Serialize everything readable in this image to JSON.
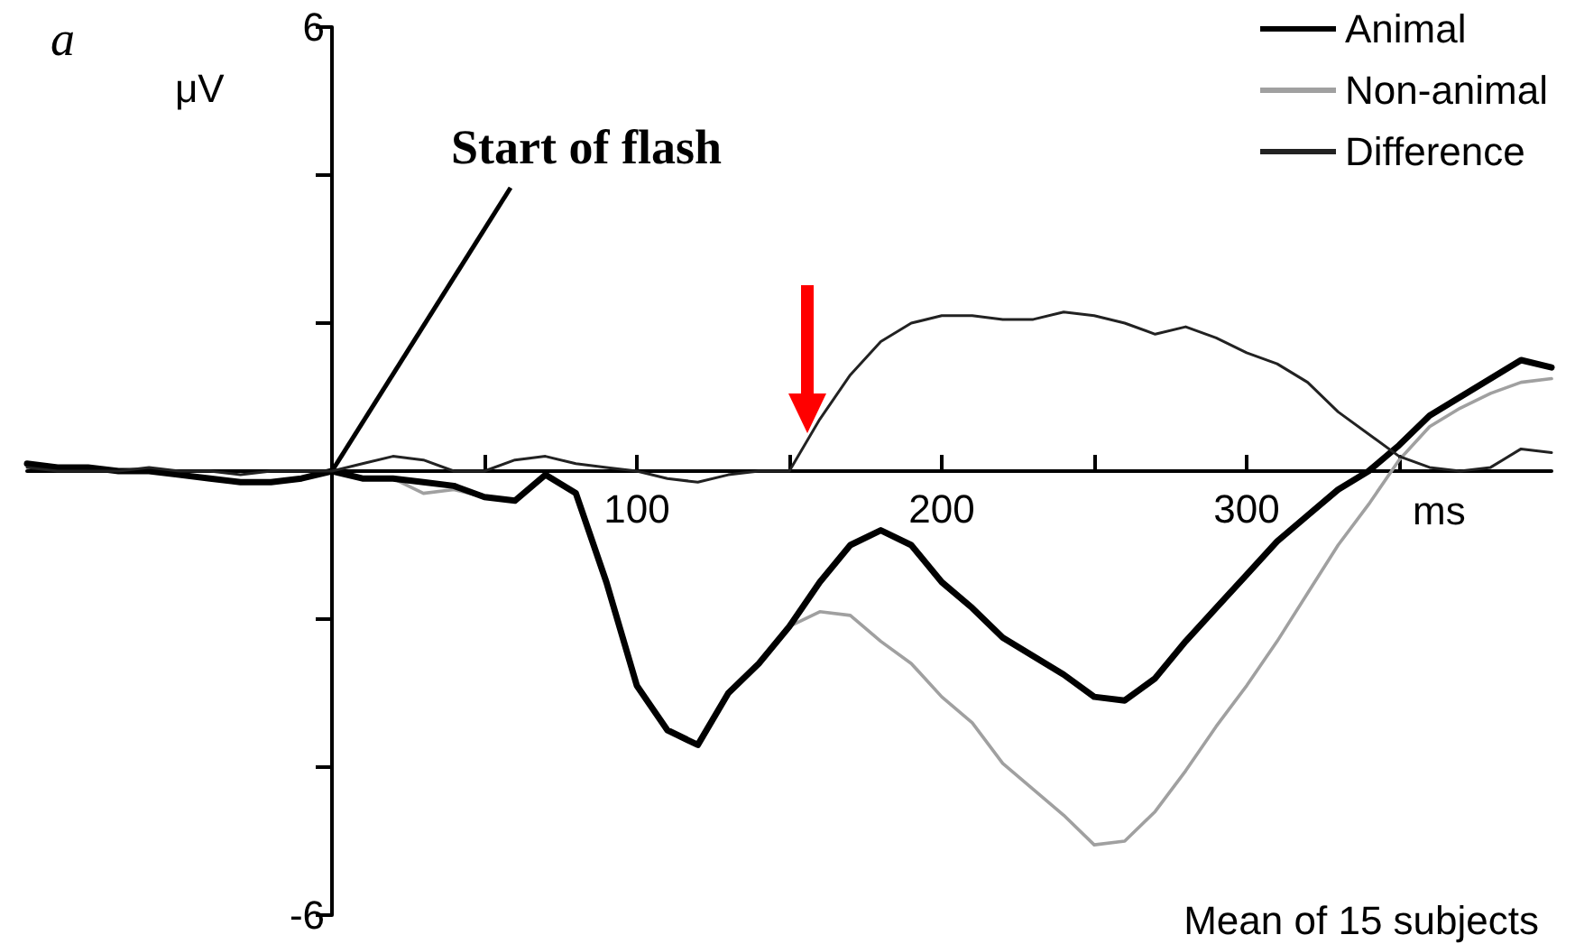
{
  "chart_data": {
    "type": "line",
    "xlabel": "ms",
    "ylabel": "μV",
    "annotations": [
      "a",
      {
        "text": "Start of flash",
        "x": 0,
        "y": 0
      },
      "Mean of 15 subjects"
    ],
    "x": [
      -100,
      -90,
      -80,
      -70,
      -60,
      -50,
      -40,
      -30,
      -20,
      -10,
      0,
      10,
      20,
      30,
      40,
      50,
      60,
      70,
      80,
      90,
      100,
      110,
      120,
      130,
      140,
      150,
      160,
      170,
      180,
      190,
      200,
      210,
      220,
      230,
      240,
      250,
      260,
      270,
      280,
      290,
      300,
      310,
      320,
      330,
      340,
      350,
      360,
      370,
      380,
      390,
      400
    ],
    "series": [
      {
        "name": "Non-animal",
        "color": "#a0a0a0",
        "values": [
          0.1,
          0.05,
          0.05,
          0,
          0,
          -0.05,
          -0.1,
          -0.15,
          -0.15,
          -0.1,
          0,
          -0.1,
          -0.1,
          -0.3,
          -0.25,
          -0.35,
          -0.4,
          -0.05,
          -0.3,
          -1.5,
          -2.9,
          -3.5,
          -3.7,
          -3.0,
          -2.6,
          -2.1,
          -1.9,
          -1.95,
          -2.3,
          -2.6,
          -3.05,
          -3.4,
          -3.95,
          -4.3,
          -4.65,
          -5.05,
          -5.0,
          -4.6,
          -4.05,
          -3.45,
          -2.9,
          -2.3,
          -1.65,
          -1.0,
          -0.45,
          0.15,
          0.6,
          0.85,
          1.05,
          1.2,
          1.25
        ]
      },
      {
        "name": "Animal",
        "color": "#000000",
        "values": [
          0.1,
          0.05,
          0.05,
          0,
          0,
          -0.05,
          -0.1,
          -0.15,
          -0.15,
          -0.1,
          0,
          -0.1,
          -0.1,
          -0.15,
          -0.2,
          -0.35,
          -0.4,
          -0.05,
          -0.3,
          -1.5,
          -2.9,
          -3.5,
          -3.7,
          -3.0,
          -2.6,
          -2.1,
          -1.5,
          -1.0,
          -0.8,
          -1.0,
          -1.5,
          -1.85,
          -2.25,
          -2.5,
          -2.75,
          -3.05,
          -3.1,
          -2.8,
          -2.3,
          -1.85,
          -1.4,
          -0.95,
          -0.6,
          -0.25,
          0,
          0.35,
          0.75,
          1.0,
          1.25,
          1.5,
          1.4
        ]
      },
      {
        "name": "Difference",
        "color": "#222222",
        "values": [
          0.05,
          0,
          0,
          0,
          0.05,
          0,
          0,
          -0.05,
          0,
          0,
          0,
          0.1,
          0.2,
          0.15,
          0,
          0,
          0.15,
          0.2,
          0.1,
          0.05,
          0,
          -0.1,
          -0.15,
          -0.05,
          0,
          0,
          0.7,
          1.3,
          1.75,
          2.0,
          2.1,
          2.1,
          2.05,
          2.05,
          2.15,
          2.1,
          2.0,
          1.85,
          1.95,
          1.8,
          1.6,
          1.45,
          1.2,
          0.8,
          0.5,
          0.2,
          0.05,
          0,
          0.05,
          0.3,
          0.25
        ]
      }
    ],
    "xlim": [
      -100,
      400
    ],
    "xticks": [
      {
        "value": 50,
        "label": null
      },
      100,
      {
        "value": 150,
        "label": null
      },
      200,
      {
        "value": 250,
        "label": null
      },
      300,
      {
        "value": 350,
        "label": null
      }
    ],
    "ylim": [
      -6,
      6
    ],
    "yticks": [
      -6,
      {
        "value": -4,
        "label": null
      },
      {
        "value": -2,
        "label": null
      },
      {
        "value": 2,
        "label": null
      },
      {
        "value": 4,
        "label": null
      },
      6
    ],
    "grid": false,
    "legend": "top right",
    "marker": "none",
    "line_style": "solid"
  }
}
